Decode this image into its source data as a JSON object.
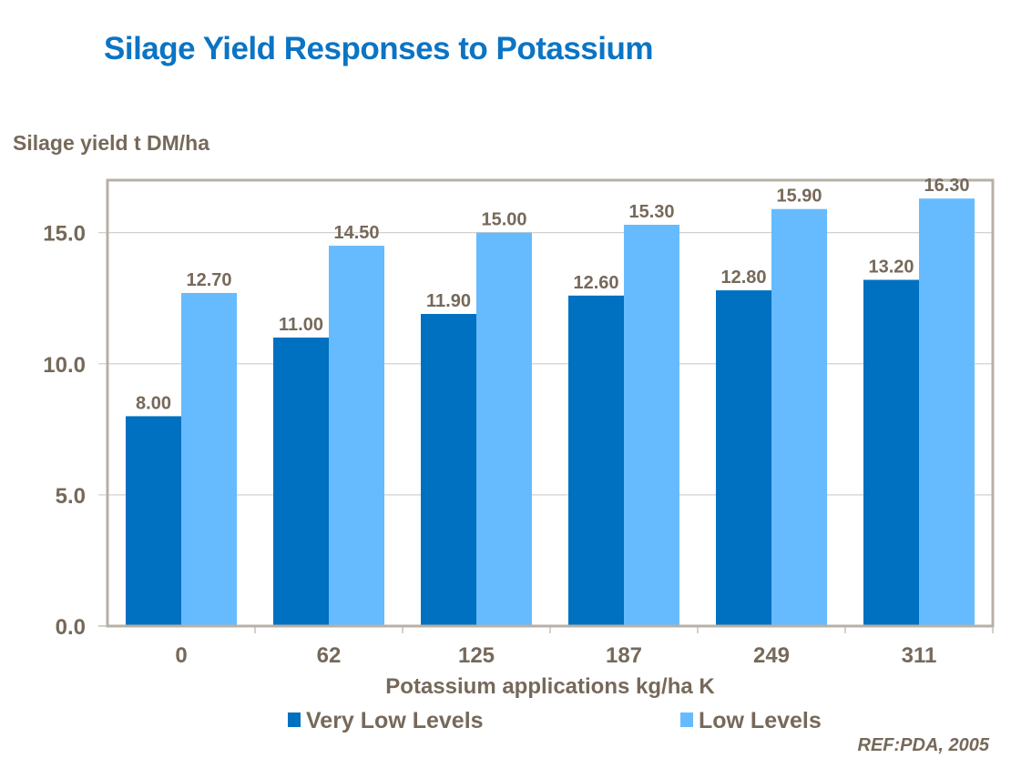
{
  "slide": {
    "title": "Silage Yield Responses to Potassium",
    "reference": "REF:PDA, 2005"
  },
  "colors": {
    "title": "#0B74C4",
    "text": "#76695A",
    "series_very_low": "#0070C0",
    "series_low": "#66BBFF",
    "frame": "#B7B0A6",
    "grid": "#D4D0CA"
  },
  "chart_data": {
    "type": "bar",
    "title": "Silage Yield Responses to Potassium",
    "ylabel": "Silage yield t DM/ha",
    "xlabel": "Potassium applications kg/ha K",
    "categories": [
      "0",
      "62",
      "125",
      "187",
      "249",
      "311"
    ],
    "series": [
      {
        "name": "Very Low Levels",
        "values": [
          8.0,
          11.0,
          11.9,
          12.6,
          12.8,
          13.2
        ],
        "labels": [
          "8.00",
          "11.00",
          "11.90",
          "12.60",
          "12.80",
          "13.20"
        ]
      },
      {
        "name": "Low Levels",
        "values": [
          12.7,
          14.5,
          15.0,
          15.3,
          15.9,
          16.3
        ],
        "labels": [
          "12.70",
          "14.50",
          "15.00",
          "15.30",
          "15.90",
          "16.30"
        ]
      }
    ],
    "ylim": [
      0,
      17
    ],
    "yticks": [
      0,
      5,
      10,
      15
    ],
    "ytick_labels": [
      "0.0",
      "5.0",
      "10.0",
      "15.0"
    ],
    "grid": true,
    "legend_position": "bottom",
    "source": "REF:PDA, 2005"
  }
}
